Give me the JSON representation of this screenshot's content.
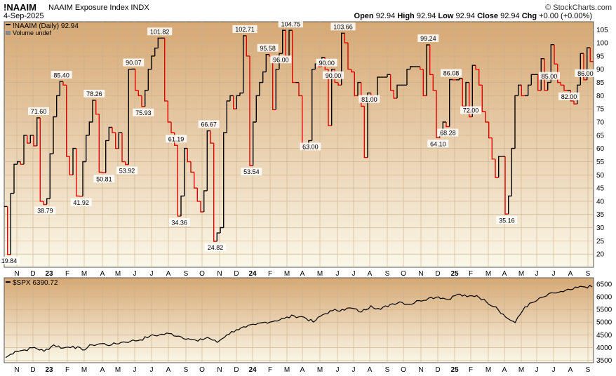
{
  "header": {
    "symbol": "!NAAIM",
    "name": "NAAIM Exposure Index",
    "exchange": "INDX",
    "date": "4-Sep-2025",
    "brand": "© StockCharts.com",
    "open_label": "Open",
    "open": "92.94",
    "high_label": "High",
    "high": "92.94",
    "low_label": "Low",
    "low": "92.94",
    "close_label": "Close",
    "close": "92.94",
    "chg_label": "Chg",
    "chg": "+0.00 (+0.00%)"
  },
  "colors": {
    "up": "#000000",
    "down": "#e00000",
    "panel_top": "#d6a874",
    "panel_bottom": "#fbf7e8"
  },
  "chart_data": [
    {
      "type": "line",
      "legend": "!NAAIM (Daily) 92.94",
      "legend2": "Volume undef",
      "ylim": [
        15,
        108
      ],
      "yticks": [
        20,
        25,
        30,
        35,
        40,
        45,
        50,
        55,
        60,
        65,
        70,
        75,
        80,
        85,
        90,
        95,
        100,
        105
      ],
      "xtick_labels": [
        "N",
        "D",
        "23",
        "F",
        "M",
        "A",
        "M",
        "J",
        "J",
        "A",
        "S",
        "O",
        "N",
        "D",
        "24",
        "F",
        "M",
        "A",
        "M",
        "J",
        "J",
        "A",
        "S",
        "O",
        "N",
        "D",
        "25",
        "F",
        "M",
        "A",
        "M",
        "J",
        "J",
        "A",
        "S"
      ],
      "values": [
        38,
        19.84,
        43,
        54,
        55,
        54,
        65,
        62,
        65,
        61,
        71.6,
        40,
        38.79,
        41,
        58,
        72,
        80,
        85.4,
        84,
        57,
        50,
        60,
        42,
        41.92,
        55,
        65,
        70,
        78.26,
        73,
        51,
        50.81,
        63,
        68,
        66,
        60,
        66,
        55,
        53.92,
        90,
        90.07,
        82,
        80,
        75.93,
        82,
        90,
        95,
        98,
        101.82,
        101.82,
        78,
        70,
        66,
        61.19,
        34.36,
        42,
        60,
        55,
        51,
        45,
        40,
        36,
        44,
        66.67,
        62,
        24.82,
        28,
        30,
        66,
        78,
        80,
        75,
        80,
        81,
        102.71,
        95,
        53.54,
        70,
        80,
        85,
        89,
        95.58,
        95,
        74.7,
        90,
        96,
        104.75,
        95,
        104.75,
        85,
        85,
        80,
        59.48,
        60,
        63,
        90,
        92,
        91,
        94.45,
        90,
        68.65,
        90,
        85,
        84,
        103.66,
        100,
        90,
        89,
        80,
        85,
        76,
        56.57,
        81,
        80,
        78,
        87,
        87,
        87,
        88,
        82,
        79,
        84,
        84,
        84,
        90,
        91,
        91,
        91,
        90,
        80,
        99.24,
        88,
        82,
        64.1,
        65,
        70,
        68.28,
        86.08,
        86,
        86,
        86.5,
        76,
        85,
        72,
        91.48,
        90,
        84,
        74,
        70,
        64,
        56,
        49,
        57,
        57,
        35.16,
        42,
        60,
        80,
        84,
        80,
        80,
        84,
        88,
        88,
        82,
        94,
        82,
        85,
        99.3,
        92,
        85,
        84,
        82,
        82,
        78,
        76.85,
        84,
        96,
        86,
        98.15,
        92.94
      ]
    },
    {
      "type": "line",
      "legend": "$SPX 6390.72",
      "ylim": [
        3400,
        6750
      ],
      "yticks": [
        3500,
        4000,
        4500,
        5000,
        5500,
        6000,
        6500
      ],
      "xtick_labels": [
        "N",
        "D",
        "23",
        "F",
        "M",
        "A",
        "M",
        "J",
        "J",
        "A",
        "S",
        "O",
        "N",
        "D",
        "24",
        "F",
        "M",
        "A",
        "M",
        "J",
        "J",
        "A",
        "S",
        "O",
        "N",
        "D",
        "25",
        "F",
        "M",
        "A",
        "M",
        "J",
        "J",
        "A",
        "S"
      ],
      "values": [
        3600,
        3850,
        3900,
        4000,
        3850,
        4100,
        3980,
        4050,
        3900,
        4100,
        4150,
        4100,
        4200,
        4250,
        4300,
        4450,
        4500,
        4550,
        4450,
        4350,
        4250,
        4400,
        4200,
        4500,
        4700,
        4800,
        4900,
        5000,
        5050,
        5150,
        5250,
        5200,
        5000,
        5300,
        5450,
        5500,
        5550,
        5400,
        5650,
        5500,
        5700,
        5800,
        5700,
        5850,
        5950,
        6000,
        5900,
        6100,
        6000,
        6050,
        5800,
        5600,
        5200,
        4980,
        5600,
        5800,
        6000,
        6150,
        6200,
        6300,
        6400,
        6390.72
      ]
    }
  ]
}
